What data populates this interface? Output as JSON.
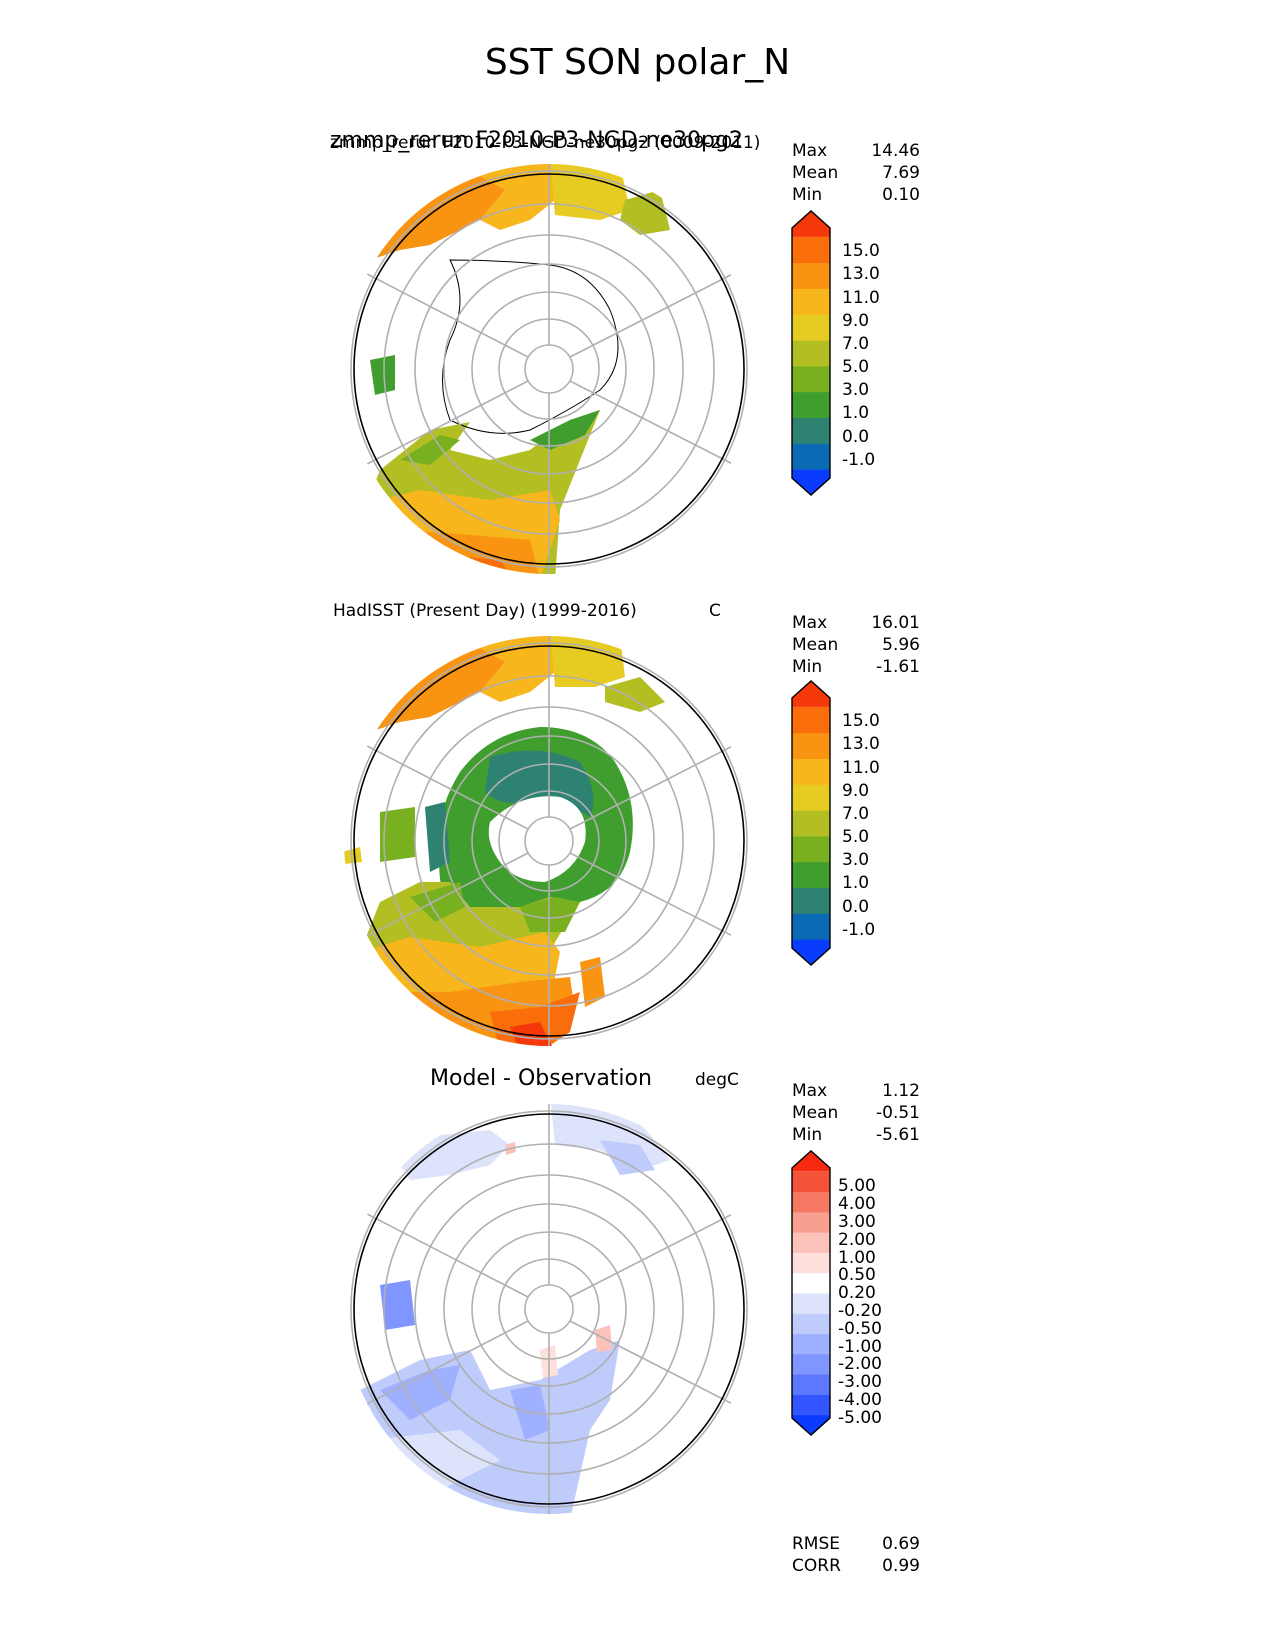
{
  "figure": {
    "title": "SST SON polar_N"
  },
  "colors": {
    "sst": [
      "#0a3cff",
      "#0a6bb4",
      "#2e8272",
      "#3f9e2e",
      "#79b01f",
      "#b2be22",
      "#e6cc22",
      "#f7b61c",
      "#f99412",
      "#f96d0b",
      "#f5380a"
    ],
    "diff": [
      "#0a3cff",
      "#3355ff",
      "#5c78ff",
      "#7f95ff",
      "#9fb0ff",
      "#bfcbfb",
      "#dde3fa",
      "#ffffff",
      "#fde0dc",
      "#fbc2b9",
      "#f99f90",
      "#f77862",
      "#f5523a",
      "#f52a10"
    ],
    "land": "#ffffff",
    "grid": "#b0b0b0"
  },
  "chart_data": [
    {
      "type": "heatmap",
      "projection": "north polar stereographic",
      "title_left": "zmmp_rerun F2010-P3-NGD-ne30pg2",
      "title_left_overlap": "zmmp_rerun F2010-P3-NGD-ne30pg2 (0009-2011)",
      "units": "",
      "stats": {
        "Max": "14.46",
        "Mean": "7.69",
        "Min": "0.10"
      },
      "colorbar_levels": [
        "15.0",
        "13.0",
        "11.0",
        "9.0",
        "7.0",
        "5.0",
        "3.0",
        "1.0",
        "0.0",
        "-1.0"
      ],
      "max": 14.46,
      "mean": 7.69,
      "min": 0.1
    },
    {
      "type": "heatmap",
      "projection": "north polar stereographic",
      "title_left": "HadISST (Present Day) (1999-2016)",
      "units": "C",
      "stats": {
        "Max": "16.01",
        "Mean": "5.96",
        "Min": "-1.61"
      },
      "colorbar_levels": [
        "15.0",
        "13.0",
        "11.0",
        "9.0",
        "7.0",
        "5.0",
        "3.0",
        "1.0",
        "0.0",
        "-1.0"
      ],
      "max": 16.01,
      "mean": 5.96,
      "min": -1.61
    },
    {
      "type": "heatmap",
      "projection": "north polar stereographic",
      "title_left": "Model - Observation",
      "units": "degC",
      "stats": {
        "Max": "1.12",
        "Mean": "-0.51",
        "Min": "-5.61"
      },
      "colorbar_levels": [
        "5.00",
        "4.00",
        "3.00",
        "2.00",
        "1.00",
        "0.50",
        "0.20",
        "-0.20",
        "-0.50",
        "-1.00",
        "-2.00",
        "-3.00",
        "-4.00",
        "-5.00"
      ],
      "metrics": {
        "RMSE": "0.69",
        "CORR": "0.99"
      },
      "max": 1.12,
      "mean": -0.51,
      "min": -5.61
    }
  ]
}
